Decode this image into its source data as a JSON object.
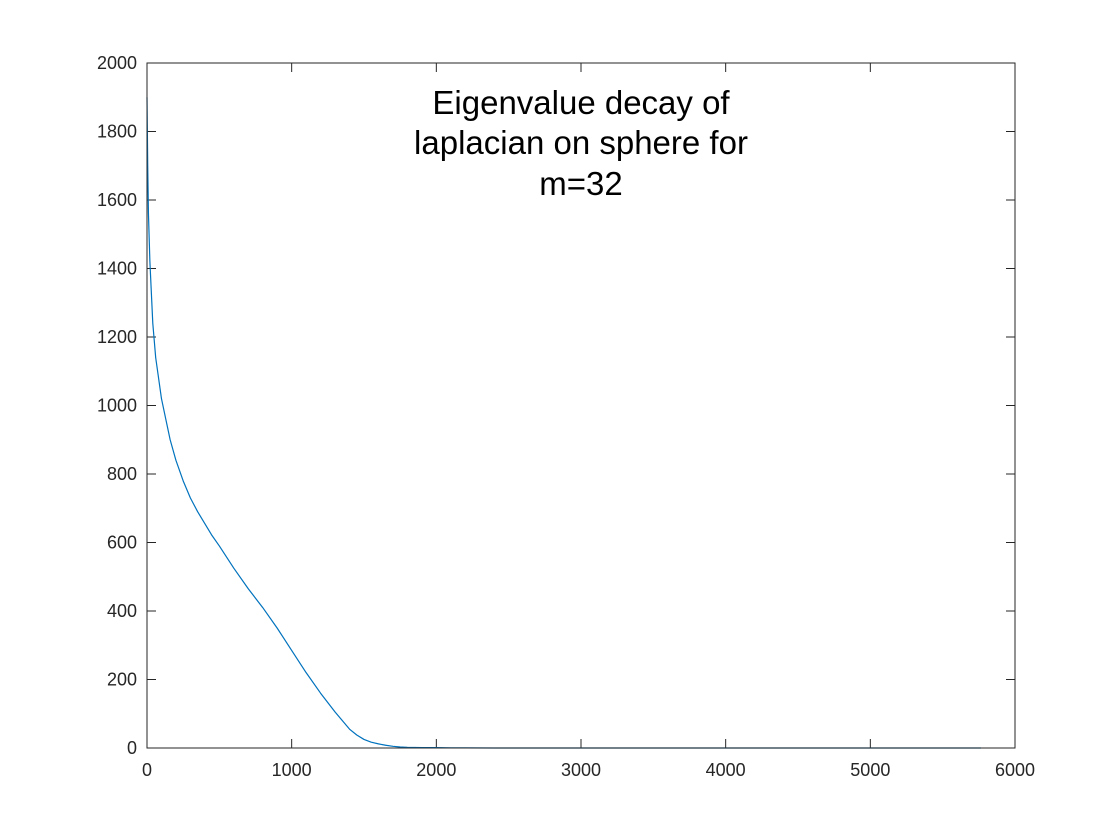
{
  "chart_data": {
    "type": "line",
    "title_lines": [
      "Eigenvalue decay of",
      "laplacian on sphere for",
      "m=32"
    ],
    "xlabel": "",
    "ylabel": "",
    "xlim": [
      0,
      6000
    ],
    "ylim": [
      0,
      2000
    ],
    "x_ticks": [
      "0",
      "1000",
      "2000",
      "3000",
      "4000",
      "5000",
      "6000"
    ],
    "y_ticks": [
      "0",
      "200",
      "400",
      "600",
      "800",
      "1000",
      "1200",
      "1400",
      "1600",
      "1800",
      "2000"
    ],
    "grid": false,
    "series": [
      {
        "color": "#0072BD",
        "x": [
          0,
          5,
          10,
          20,
          40,
          60,
          80,
          100,
          130,
          160,
          200,
          250,
          300,
          350,
          400,
          450,
          500,
          600,
          700,
          800,
          900,
          1000,
          1100,
          1200,
          1300,
          1400,
          1450,
          1500,
          1550,
          1600,
          1650,
          1700,
          1750,
          1800,
          1900,
          2000,
          2100,
          2200,
          2400,
          2600,
          3000,
          3500,
          4000,
          4500,
          5000,
          5500,
          5765
        ],
        "y": [
          1900,
          1700,
          1560,
          1420,
          1240,
          1140,
          1080,
          1020,
          960,
          900,
          840,
          780,
          730,
          690,
          655,
          620,
          590,
          525,
          465,
          410,
          350,
          285,
          220,
          160,
          105,
          55,
          38,
          25,
          17,
          12,
          8,
          5,
          3,
          2,
          1,
          1,
          0.5,
          0.3,
          0.1,
          0,
          0,
          0,
          0,
          0,
          0,
          0,
          0
        ]
      }
    ]
  }
}
